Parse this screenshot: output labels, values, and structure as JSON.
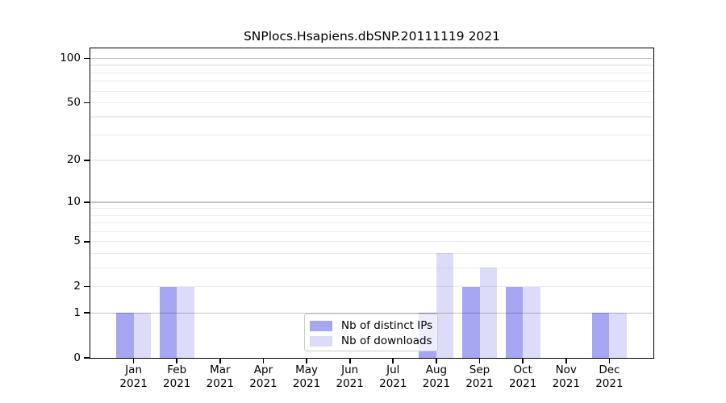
{
  "chart_data": {
    "type": "bar",
    "title": "SNPlocs.Hsapiens.dbSNP.20111119 2021",
    "year_label": "2021",
    "categories": [
      "Jan",
      "Feb",
      "Mar",
      "Apr",
      "May",
      "Jun",
      "Jul",
      "Aug",
      "Sep",
      "Oct",
      "Nov",
      "Dec"
    ],
    "series": [
      {
        "name": "Nb of distinct IPs",
        "color": "#a6a6f2",
        "values": [
          1,
          2,
          0,
          0,
          0,
          0,
          0,
          1,
          2,
          2,
          0,
          1
        ]
      },
      {
        "name": "Nb of downloads",
        "color": "#dcdcf8",
        "values": [
          1,
          2,
          0,
          0,
          0,
          0,
          0,
          4,
          3,
          2,
          0,
          1
        ]
      }
    ],
    "yticks": [
      0,
      1,
      2,
      5,
      10,
      20,
      50,
      100
    ],
    "ylim": [
      0,
      117
    ],
    "scale": "log1p",
    "xlabel": "",
    "ylabel": "",
    "grid": "horizontal",
    "grid_major_at": [
      1,
      10,
      100
    ],
    "legend_position": "lower center"
  }
}
